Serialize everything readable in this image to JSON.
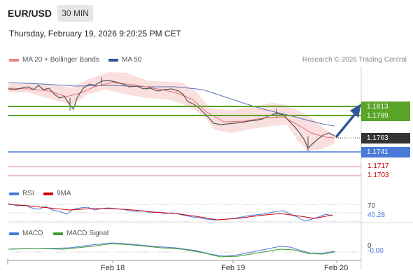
{
  "header": {
    "symbol": "EUR/USD",
    "timeframe": "30 MIN",
    "datetime": "Thursday, February 19, 2026 9:20:25 PM CET"
  },
  "legend": {
    "ma20_label": "MA 20 + Bollinger Bands",
    "ma20_color": "#f08080",
    "ma50_label": "MA 50",
    "ma50_color": "#2f5597",
    "credit": "Research © 2026 Trading Central"
  },
  "levels": {
    "r1": "1.1813",
    "r2": "1.1799",
    "current": "1.1763",
    "s1": "1.1741",
    "s2": "1.1717",
    "s3": "1.1703"
  },
  "rsi": {
    "label": "RSI",
    "ma_label": "9MA",
    "level": "70",
    "value": "40.28",
    "rsi_color": "#4a78d8",
    "ma_color": "#d00000"
  },
  "macd": {
    "label": "MACD",
    "signal_label": "MACD Signal",
    "zero": "0",
    "value": "-0.00",
    "macd_color": "#4a78d8",
    "signal_color": "#3a9a2a"
  },
  "xaxis": {
    "ticks": [
      "Feb 18",
      "Feb 19",
      "Feb 20"
    ]
  }
}
